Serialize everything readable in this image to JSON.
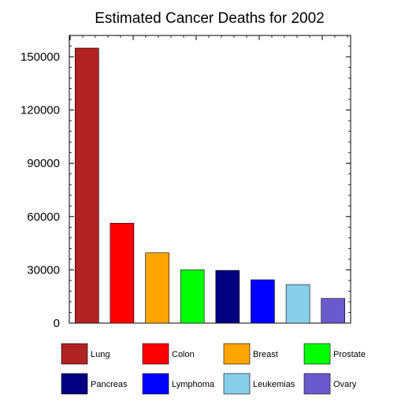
{
  "chart_data": {
    "type": "bar",
    "title": "Estimated Cancer Deaths for 2002",
    "xlabel": "",
    "ylabel": "",
    "ylim": [
      0,
      162000
    ],
    "yticks": [
      0,
      30000,
      60000,
      90000,
      120000,
      150000
    ],
    "ytick_labels": [
      "0",
      "30000",
      "60000",
      "90000",
      "120000",
      "150000"
    ],
    "grid": false,
    "legend_position": "bottom",
    "categories": [
      "Lung",
      "Colon",
      "Breast",
      "Prostate",
      "Pancreas",
      "Lymphoma",
      "Leukemias",
      "Ovary"
    ],
    "values": [
      154900,
      56300,
      39600,
      30000,
      29700,
      24400,
      21700,
      13900
    ],
    "colors": [
      "#b22222",
      "#ff0000",
      "#ffa500",
      "#00ff00",
      "#000080",
      "#0000ff",
      "#87ceeb",
      "#6a5acd"
    ]
  }
}
